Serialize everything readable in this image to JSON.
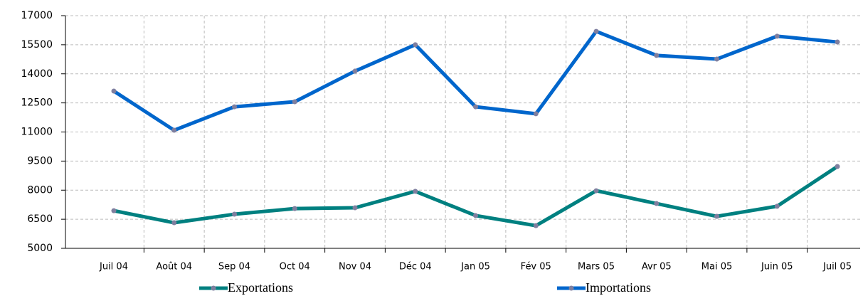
{
  "chart_data": {
    "type": "line",
    "categories": [
      "Juil 04",
      "Août 04",
      "Sep 04",
      "Oct 04",
      "Nov 04",
      "Déc 04",
      "Jan 05",
      "Fév 05",
      "Mars 05",
      "Avr 05",
      "Mai 05",
      "Juin 05",
      "Juil 05"
    ],
    "series": [
      {
        "name": "Exportations",
        "color": "#008080",
        "values": [
          6940,
          6320,
          6760,
          7050,
          7090,
          7940,
          6690,
          6170,
          7970,
          7310,
          6650,
          7170,
          9220
        ]
      },
      {
        "name": "Importations",
        "color": "#0066cc",
        "values": [
          13110,
          11090,
          12300,
          12560,
          14140,
          15500,
          12300,
          11940,
          16190,
          14950,
          14760,
          15940,
          15640
        ]
      }
    ],
    "marker_color": "#7f7f9f",
    "ylim": [
      5000,
      17000
    ],
    "yticks": [
      5000,
      6500,
      8000,
      9500,
      11000,
      12500,
      14000,
      15500,
      17000
    ],
    "grid": true,
    "legend": "bottom"
  }
}
